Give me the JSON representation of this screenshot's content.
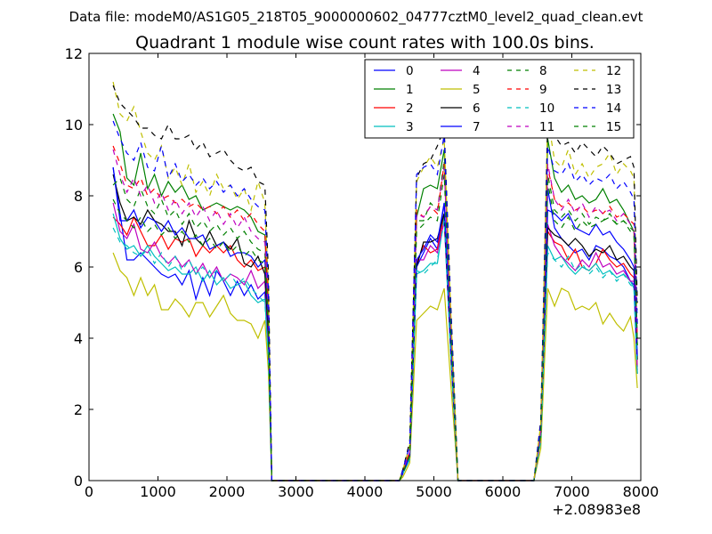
{
  "header": {
    "suptitle": "Data file: modeM0/AS1G05_218T05_9000000602_04777cztM0_level2_quad_clean.evt"
  },
  "chart_data": {
    "type": "line",
    "title": "Quadrant 1 module wise count rates with 100.0s bins.",
    "xlabel": "",
    "ylabel": "",
    "x_offset_label": "+2.08983e8",
    "xlim": [
      0,
      8000
    ],
    "ylim": [
      0,
      12
    ],
    "xticks": [
      0,
      1000,
      2000,
      3000,
      4000,
      5000,
      6000,
      7000,
      8000
    ],
    "yticks": [
      0,
      2,
      4,
      6,
      8,
      10,
      12
    ],
    "grid": false,
    "legend_position": "top-right",
    "legend_columns": 4,
    "x": [
      350,
      450,
      550,
      650,
      750,
      850,
      950,
      1050,
      1150,
      1250,
      1350,
      1450,
      1550,
      1650,
      1750,
      1850,
      1950,
      2050,
      2150,
      2250,
      2350,
      2450,
      2550,
      2600,
      2650,
      3000,
      3500,
      4000,
      4500,
      4550,
      4650,
      4750,
      4850,
      4950,
      5050,
      5150,
      5250,
      5350,
      5500,
      6000,
      6450,
      6550,
      6650,
      6750,
      6850,
      6950,
      7050,
      7150,
      7250,
      7350,
      7450,
      7550,
      7650,
      7750,
      7850,
      7900,
      7950
    ],
    "series": [
      {
        "name": "0",
        "color": "#0000ff",
        "dash": "solid",
        "values": [
          8.8,
          7.5,
          6.2,
          6.2,
          6.4,
          6.2,
          6.0,
          5.8,
          5.7,
          5.8,
          5.5,
          5.9,
          5.1,
          5.7,
          5.2,
          5.9,
          5.6,
          5.2,
          5.6,
          5.2,
          5.5,
          5.1,
          5.3,
          3.6,
          0,
          0,
          0,
          0,
          0,
          0.2,
          0.6,
          6.0,
          6.4,
          6.8,
          6.5,
          7.8,
          3.5,
          0,
          0,
          0,
          0,
          1.2,
          8.2,
          7.1,
          6.8,
          6.6,
          6.4,
          6.5,
          6.2,
          6.6,
          6.5,
          6.3,
          6.2,
          6.0,
          5.6,
          5.5,
          3.0
        ]
      },
      {
        "name": "1",
        "color": "#008000",
        "dash": "solid",
        "values": [
          10.3,
          9.8,
          8.5,
          8.3,
          9.2,
          8.2,
          8.6,
          8.0,
          8.4,
          8.1,
          8.3,
          7.9,
          8.0,
          7.6,
          7.7,
          7.8,
          7.7,
          7.6,
          7.7,
          7.6,
          7.4,
          7.0,
          6.9,
          4.8,
          0,
          0,
          0,
          0,
          0,
          0.3,
          0.8,
          7.4,
          8.2,
          8.3,
          8.2,
          9.3,
          4.3,
          0,
          0,
          0,
          0,
          1.4,
          9.6,
          8.5,
          8.1,
          8.3,
          7.9,
          8.0,
          7.8,
          7.9,
          8.2,
          7.8,
          7.9,
          7.6,
          7.2,
          7.0,
          3.8
        ]
      },
      {
        "name": "2",
        "color": "#ff0000",
        "dash": "solid",
        "values": [
          7.4,
          7.2,
          6.9,
          7.4,
          7.0,
          6.6,
          6.6,
          6.9,
          6.5,
          6.8,
          6.7,
          6.8,
          6.3,
          6.6,
          6.4,
          6.6,
          6.4,
          6.6,
          6.2,
          6.0,
          6.2,
          5.9,
          6.0,
          4.2,
          0,
          0,
          0,
          0,
          0,
          0.2,
          0.7,
          6.1,
          6.6,
          6.4,
          6.5,
          7.5,
          3.4,
          0,
          0,
          0,
          0,
          1.3,
          7.0,
          6.7,
          6.6,
          6.2,
          6.5,
          6.0,
          5.9,
          6.1,
          6.5,
          6.2,
          6.0,
          6.1,
          5.8,
          5.7,
          3.2
        ]
      },
      {
        "name": "3",
        "color": "#00bfbf",
        "dash": "solid",
        "values": [
          7.5,
          6.8,
          6.5,
          6.6,
          6.3,
          6.6,
          6.3,
          6.1,
          5.9,
          6.0,
          5.8,
          5.8,
          6.0,
          5.6,
          5.9,
          5.5,
          5.7,
          5.4,
          5.5,
          5.6,
          5.2,
          5.0,
          5.1,
          3.5,
          0,
          0,
          0,
          0,
          0,
          0.2,
          0.6,
          5.8,
          5.9,
          6.1,
          6.1,
          7.4,
          3.3,
          0,
          0,
          0,
          0,
          1.2,
          6.6,
          6.2,
          6.3,
          6.0,
          5.8,
          6.0,
          5.9,
          6.1,
          5.8,
          5.9,
          5.7,
          5.8,
          5.6,
          5.4,
          3.0
        ]
      },
      {
        "name": "4",
        "color": "#bf00bf",
        "dash": "solid",
        "values": [
          7.8,
          7.0,
          6.8,
          7.2,
          6.5,
          6.4,
          6.7,
          6.3,
          6.1,
          6.3,
          6.0,
          6.2,
          5.8,
          6.1,
          5.7,
          6.0,
          5.6,
          5.8,
          5.7,
          5.5,
          5.9,
          5.4,
          5.6,
          3.9,
          0,
          0,
          0,
          0,
          0,
          0.2,
          0.7,
          6.2,
          6.2,
          6.6,
          6.4,
          7.3,
          3.4,
          0,
          0,
          0,
          0,
          1.2,
          7.2,
          6.6,
          6.3,
          6.1,
          5.9,
          6.2,
          6.0,
          6.4,
          6.0,
          6.1,
          5.8,
          5.9,
          5.6,
          5.6,
          3.1
        ]
      },
      {
        "name": "5",
        "color": "#bfbf00",
        "dash": "solid",
        "values": [
          6.4,
          5.9,
          5.7,
          5.2,
          5.7,
          5.2,
          5.5,
          4.8,
          4.8,
          5.1,
          4.9,
          4.6,
          5.0,
          5.0,
          4.6,
          4.9,
          5.2,
          4.7,
          4.5,
          4.5,
          4.4,
          4.0,
          4.5,
          3.1,
          0,
          0,
          0,
          0,
          0,
          0.1,
          0.5,
          4.5,
          4.7,
          4.9,
          4.8,
          5.4,
          2.6,
          0,
          0,
          0,
          0,
          0.9,
          5.4,
          4.9,
          5.4,
          5.3,
          4.8,
          4.9,
          4.8,
          5.0,
          4.4,
          4.7,
          4.4,
          4.2,
          4.6,
          4.0,
          2.6
        ]
      },
      {
        "name": "6",
        "color": "#000000",
        "dash": "solid",
        "values": [
          8.6,
          7.8,
          7.3,
          7.4,
          7.2,
          7.6,
          7.3,
          7.2,
          7.0,
          7.0,
          6.6,
          7.3,
          6.8,
          6.6,
          7.0,
          6.6,
          6.7,
          6.5,
          6.8,
          6.1,
          6.0,
          6.3,
          5.8,
          4.1,
          0,
          0,
          0,
          0,
          0,
          0.2,
          0.7,
          6.0,
          6.7,
          6.7,
          6.8,
          7.5,
          3.5,
          0,
          0,
          0,
          0,
          1.3,
          7.1,
          6.9,
          6.8,
          6.6,
          6.8,
          6.6,
          6.3,
          6.5,
          6.4,
          6.6,
          6.2,
          6.3,
          6.0,
          5.9,
          3.4
        ]
      },
      {
        "name": "7",
        "color": "#0000ff",
        "dash": "solid",
        "values": [
          8.8,
          7.3,
          7.3,
          7.6,
          7.1,
          7.4,
          7.3,
          7.0,
          7.3,
          6.9,
          7.1,
          6.8,
          6.8,
          6.9,
          6.5,
          6.6,
          6.7,
          6.3,
          6.4,
          6.4,
          6.3,
          6.0,
          6.2,
          4.4,
          0,
          0,
          0,
          0,
          0,
          0.2,
          0.7,
          6.2,
          6.5,
          6.9,
          6.7,
          7.8,
          3.6,
          0,
          0,
          0,
          0,
          1.3,
          7.6,
          7.5,
          7.3,
          7.5,
          7.1,
          7.0,
          6.9,
          7.2,
          6.9,
          7.0,
          6.7,
          6.5,
          6.2,
          6.0,
          3.5
        ]
      },
      {
        "name": "8",
        "color": "#008000",
        "dash": "dashed",
        "values": [
          8.3,
          8.5,
          7.9,
          7.7,
          8.2,
          7.7,
          7.5,
          7.9,
          7.4,
          7.6,
          7.2,
          7.5,
          7.1,
          7.3,
          7.0,
          7.2,
          6.9,
          7.1,
          6.8,
          7.0,
          6.7,
          6.5,
          6.4,
          4.6,
          0,
          0,
          0,
          0,
          0,
          0.3,
          0.8,
          7.3,
          7.3,
          7.8,
          7.6,
          9.0,
          4.2,
          0,
          0,
          0,
          0,
          1.4,
          8.6,
          7.6,
          7.4,
          7.6,
          7.3,
          7.5,
          7.2,
          7.4,
          7.3,
          7.4,
          7.2,
          7.3,
          7.0,
          6.9,
          3.8
        ]
      },
      {
        "name": "9",
        "color": "#ff0000",
        "dash": "dashed",
        "values": [
          9.4,
          8.9,
          8.3,
          8.2,
          8.5,
          8.0,
          8.2,
          7.9,
          8.0,
          7.8,
          7.9,
          7.7,
          7.8,
          7.6,
          7.7,
          7.5,
          7.7,
          7.4,
          7.6,
          7.3,
          7.5,
          7.2,
          7.0,
          5.0,
          0,
          0,
          0,
          0,
          0,
          0.3,
          0.8,
          7.6,
          7.4,
          7.7,
          7.5,
          8.9,
          4.1,
          0,
          0,
          0,
          0,
          1.4,
          8.8,
          7.9,
          7.7,
          7.8,
          7.6,
          7.7,
          7.5,
          7.6,
          7.5,
          7.7,
          7.4,
          7.5,
          7.3,
          7.2,
          4.0
        ]
      },
      {
        "name": "10",
        "color": "#00bfbf",
        "dash": "dashed",
        "values": [
          7.1,
          6.7,
          6.6,
          6.4,
          6.3,
          6.5,
          6.1,
          6.4,
          6.0,
          6.3,
          5.9,
          6.2,
          5.8,
          6.0,
          5.7,
          5.9,
          5.6,
          5.8,
          5.5,
          5.7,
          5.4,
          5.2,
          5.0,
          3.5,
          0,
          0,
          0,
          0,
          0,
          0.2,
          0.6,
          5.9,
          5.8,
          6.0,
          6.2,
          7.3,
          3.3,
          0,
          0,
          0,
          0,
          1.1,
          6.4,
          6.2,
          6.0,
          6.3,
          5.9,
          6.1,
          5.8,
          6.0,
          5.7,
          5.9,
          5.6,
          5.8,
          5.5,
          5.4,
          3.0
        ]
      },
      {
        "name": "11",
        "color": "#bf00bf",
        "dash": "dashed",
        "values": [
          9.3,
          8.6,
          8.1,
          8.5,
          8.0,
          8.3,
          7.8,
          8.1,
          7.6,
          7.9,
          7.5,
          7.8,
          7.4,
          7.7,
          7.3,
          7.6,
          7.2,
          7.5,
          7.1,
          7.4,
          7.0,
          6.8,
          6.7,
          4.8,
          0,
          0,
          0,
          0,
          0,
          0.3,
          0.8,
          7.5,
          7.4,
          7.7,
          7.6,
          8.8,
          4.1,
          0,
          0,
          0,
          0,
          1.4,
          8.9,
          7.9,
          7.6,
          7.9,
          7.5,
          7.8,
          7.4,
          7.7,
          7.5,
          7.6,
          7.3,
          7.5,
          7.2,
          7.0,
          3.9
        ]
      },
      {
        "name": "12",
        "color": "#bfbf00",
        "dash": "dashed",
        "values": [
          11.2,
          10.3,
          10.1,
          10.5,
          9.8,
          9.2,
          9.0,
          9.4,
          8.5,
          8.8,
          8.3,
          8.9,
          8.1,
          8.4,
          8.0,
          8.6,
          8.2,
          8.3,
          7.9,
          8.2,
          7.6,
          8.4,
          7.8,
          5.5,
          0,
          0,
          0,
          0,
          0,
          0.3,
          1.0,
          8.4,
          8.8,
          9.1,
          8.8,
          9.6,
          4.5,
          0,
          0,
          0,
          0,
          1.6,
          10.2,
          9.0,
          8.8,
          9.3,
          8.6,
          8.9,
          8.5,
          8.8,
          8.9,
          9.2,
          8.6,
          8.9,
          8.7,
          8.5,
          4.8
        ]
      },
      {
        "name": "13",
        "color": "#000000",
        "dash": "dashed",
        "values": [
          11.1,
          10.6,
          10.4,
          10.2,
          9.9,
          9.9,
          9.7,
          9.6,
          10.0,
          9.6,
          9.6,
          9.7,
          9.3,
          9.5,
          9.1,
          9.2,
          9.3,
          9.0,
          8.8,
          8.7,
          8.8,
          8.4,
          8.3,
          5.9,
          0,
          0,
          0,
          0,
          0,
          0.3,
          1.1,
          8.5,
          8.9,
          9.0,
          9.4,
          9.9,
          4.7,
          0,
          0,
          0,
          0,
          1.7,
          10.1,
          9.7,
          9.4,
          9.5,
          9.2,
          9.5,
          9.3,
          9.1,
          9.4,
          9.2,
          8.9,
          9.0,
          9.1,
          8.8,
          5.0
        ]
      },
      {
        "name": "14",
        "color": "#0000ff",
        "dash": "dashed",
        "values": [
          10.1,
          9.6,
          9.2,
          9.0,
          9.5,
          8.8,
          8.7,
          9.4,
          8.5,
          8.9,
          8.4,
          8.6,
          8.3,
          8.5,
          8.2,
          8.4,
          8.1,
          8.3,
          8.0,
          8.2,
          7.9,
          7.7,
          7.6,
          5.4,
          0,
          0,
          0,
          0,
          0,
          0.3,
          1.0,
          8.6,
          8.8,
          8.9,
          8.6,
          9.7,
          4.5,
          0,
          0,
          0,
          0,
          1.6,
          9.4,
          8.7,
          8.6,
          8.9,
          8.4,
          8.6,
          8.3,
          8.5,
          8.4,
          8.6,
          8.2,
          8.4,
          8.1,
          7.9,
          4.4
        ]
      },
      {
        "name": "15",
        "color": "#008000",
        "dash": "dashed",
        "values": [
          7.9,
          7.5,
          7.3,
          7.1,
          7.4,
          7.0,
          7.2,
          6.9,
          7.1,
          6.8,
          7.0,
          6.7,
          6.9,
          6.6,
          6.8,
          6.5,
          6.7,
          6.4,
          6.6,
          6.3,
          6.5,
          6.2,
          6.1,
          4.3,
          0,
          0,
          0,
          0,
          0,
          0.2,
          0.7,
          7.0,
          7.2,
          7.4,
          7.3,
          8.6,
          4.0,
          0,
          0,
          0,
          0,
          1.3,
          8.4,
          7.3,
          7.1,
          7.4,
          7.0,
          7.3,
          7.1,
          7.2,
          7.3,
          7.5,
          7.2,
          7.3,
          7.1,
          7.0,
          3.9
        ]
      }
    ]
  }
}
